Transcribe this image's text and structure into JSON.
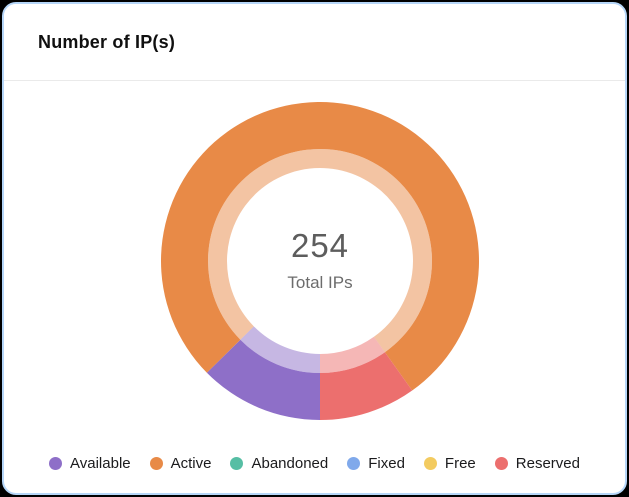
{
  "card": {
    "title": "Number of IP(s)"
  },
  "chart_data": {
    "type": "donut",
    "title": "Number of IP(s)",
    "total": 254,
    "center_value": "254",
    "center_caption": "Total IPs",
    "start_angle_deg": 180,
    "direction": "clockwise",
    "legend_position": "bottom",
    "inner_ring_opacity": 0.5,
    "series": [
      {
        "name": "Available",
        "value": 32,
        "color": "#8E6FC8"
      },
      {
        "name": "Active",
        "value": 197,
        "color": "#E88A47"
      },
      {
        "name": "Abandoned",
        "value": 0,
        "color": "#56BEA4"
      },
      {
        "name": "Fixed",
        "value": 0,
        "color": "#80A9EB"
      },
      {
        "name": "Free",
        "value": 0,
        "color": "#F3CB60"
      },
      {
        "name": "Reserved",
        "value": 25,
        "color": "#EC6F6E"
      }
    ]
  },
  "colors": {
    "card_border": "#b6d6f8",
    "divider": "#eaeaea",
    "title_text": "#101010",
    "center_value_text": "#5d5d5d",
    "center_caption_text": "#6c6c6c",
    "legend_text": "#1b1b1d"
  }
}
